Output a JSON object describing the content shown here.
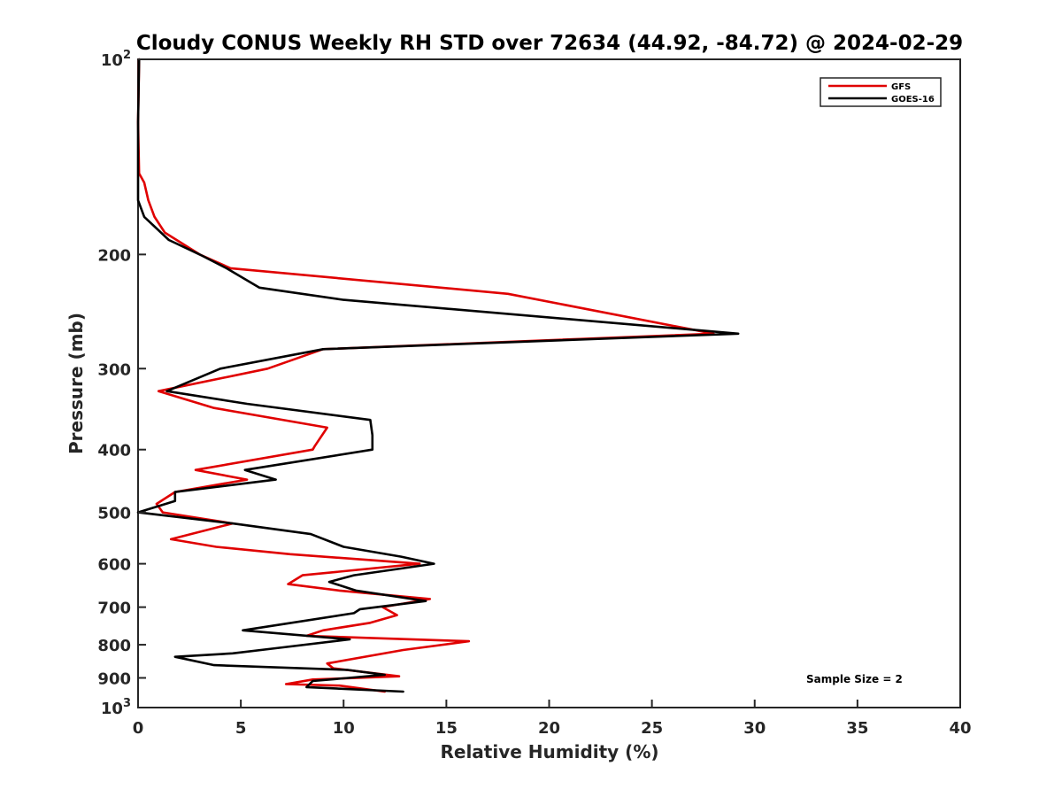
{
  "chart_data": {
    "type": "line",
    "title": "Cloudy CONUS Weekly RH STD over 72634 (44.92, -84.72) @ 2024-02-29",
    "xlabel": "Relative Humidity (%)",
    "ylabel": "Pressure (mb)",
    "xlim": [
      0,
      40
    ],
    "ylim": [
      100,
      1000
    ],
    "y_scale": "log",
    "y_reversed": true,
    "grid": false,
    "legend_position": "top-right",
    "x_ticks": [
      "0",
      "5",
      "10",
      "15",
      "20",
      "25",
      "30",
      "35",
      "40"
    ],
    "x_tick_values": [
      0,
      5,
      10,
      15,
      20,
      25,
      30,
      35,
      40
    ],
    "y_ticks": [
      {
        "value": 100,
        "base": "10",
        "exp": "2"
      },
      {
        "value": 200,
        "label": "200"
      },
      {
        "value": 300,
        "label": "300"
      },
      {
        "value": 400,
        "label": "400"
      },
      {
        "value": 500,
        "label": "500"
      },
      {
        "value": 600,
        "label": "600"
      },
      {
        "value": 700,
        "label": "700"
      },
      {
        "value": 800,
        "label": "800"
      },
      {
        "value": 900,
        "label": "900"
      },
      {
        "value": 1000,
        "base": "10",
        "exp": "3"
      }
    ],
    "series": [
      {
        "name": "GFS",
        "color": "#e00000",
        "points": [
          [
            0.05,
            100
          ],
          [
            0.0,
            125
          ],
          [
            0.05,
            150
          ],
          [
            0.3,
            155
          ],
          [
            0.5,
            165
          ],
          [
            0.8,
            175
          ],
          [
            1.3,
            185
          ],
          [
            3.0,
            200
          ],
          [
            4.5,
            210
          ],
          [
            18.0,
            230
          ],
          [
            28.0,
            265
          ],
          [
            9.0,
            280
          ],
          [
            6.3,
            300
          ],
          [
            1.0,
            325
          ],
          [
            3.7,
            345
          ],
          [
            9.2,
            370
          ],
          [
            8.6,
            395
          ],
          [
            8.5,
            400
          ],
          [
            2.8,
            430
          ],
          [
            5.3,
            445
          ],
          [
            1.8,
            465
          ],
          [
            0.9,
            485
          ],
          [
            1.2,
            500
          ],
          [
            4.6,
            520
          ],
          [
            1.6,
            550
          ],
          [
            3.8,
            565
          ],
          [
            7.4,
            580
          ],
          [
            13.7,
            600
          ],
          [
            8.0,
            625
          ],
          [
            7.3,
            645
          ],
          [
            9.8,
            660
          ],
          [
            14.2,
            680
          ],
          [
            11.9,
            700
          ],
          [
            12.6,
            720
          ],
          [
            11.3,
            740
          ],
          [
            9.0,
            760
          ],
          [
            8.2,
            775
          ],
          [
            16.1,
            790
          ],
          [
            12.9,
            815
          ],
          [
            9.2,
            855
          ],
          [
            9.5,
            870
          ],
          [
            12.7,
            895
          ],
          [
            8.5,
            905
          ],
          [
            7.2,
            920
          ],
          [
            9.8,
            925
          ],
          [
            12.0,
            945
          ]
        ]
      },
      {
        "name": "GOES-16",
        "color": "#000000",
        "points": [
          [
            0.05,
            100
          ],
          [
            0.0,
            125
          ],
          [
            0.0,
            150
          ],
          [
            0.0,
            165
          ],
          [
            0.3,
            175
          ],
          [
            1.5,
            190
          ],
          [
            3.0,
            200
          ],
          [
            4.3,
            210
          ],
          [
            5.9,
            225
          ],
          [
            10.0,
            235
          ],
          [
            29.2,
            265
          ],
          [
            9.0,
            280
          ],
          [
            4.0,
            300
          ],
          [
            1.4,
            325
          ],
          [
            5.3,
            340
          ],
          [
            11.3,
            360
          ],
          [
            11.4,
            380
          ],
          [
            11.4,
            400
          ],
          [
            5.2,
            430
          ],
          [
            6.7,
            445
          ],
          [
            1.8,
            465
          ],
          [
            1.8,
            480
          ],
          [
            0.0,
            500
          ],
          [
            4.6,
            520
          ],
          [
            8.4,
            540
          ],
          [
            10.0,
            565
          ],
          [
            12.8,
            585
          ],
          [
            14.4,
            600
          ],
          [
            10.5,
            625
          ],
          [
            9.3,
            640
          ],
          [
            10.6,
            660
          ],
          [
            14.0,
            685
          ],
          [
            10.8,
            705
          ],
          [
            10.5,
            715
          ],
          [
            5.1,
            760
          ],
          [
            10.3,
            785
          ],
          [
            6.7,
            810
          ],
          [
            4.6,
            825
          ],
          [
            1.8,
            835
          ],
          [
            3.7,
            860
          ],
          [
            10.2,
            875
          ],
          [
            12.0,
            890
          ],
          [
            8.5,
            910
          ],
          [
            8.2,
            930
          ],
          [
            12.9,
            945
          ]
        ]
      }
    ],
    "annotations": [
      {
        "text": "Sample Size = 2"
      }
    ]
  }
}
